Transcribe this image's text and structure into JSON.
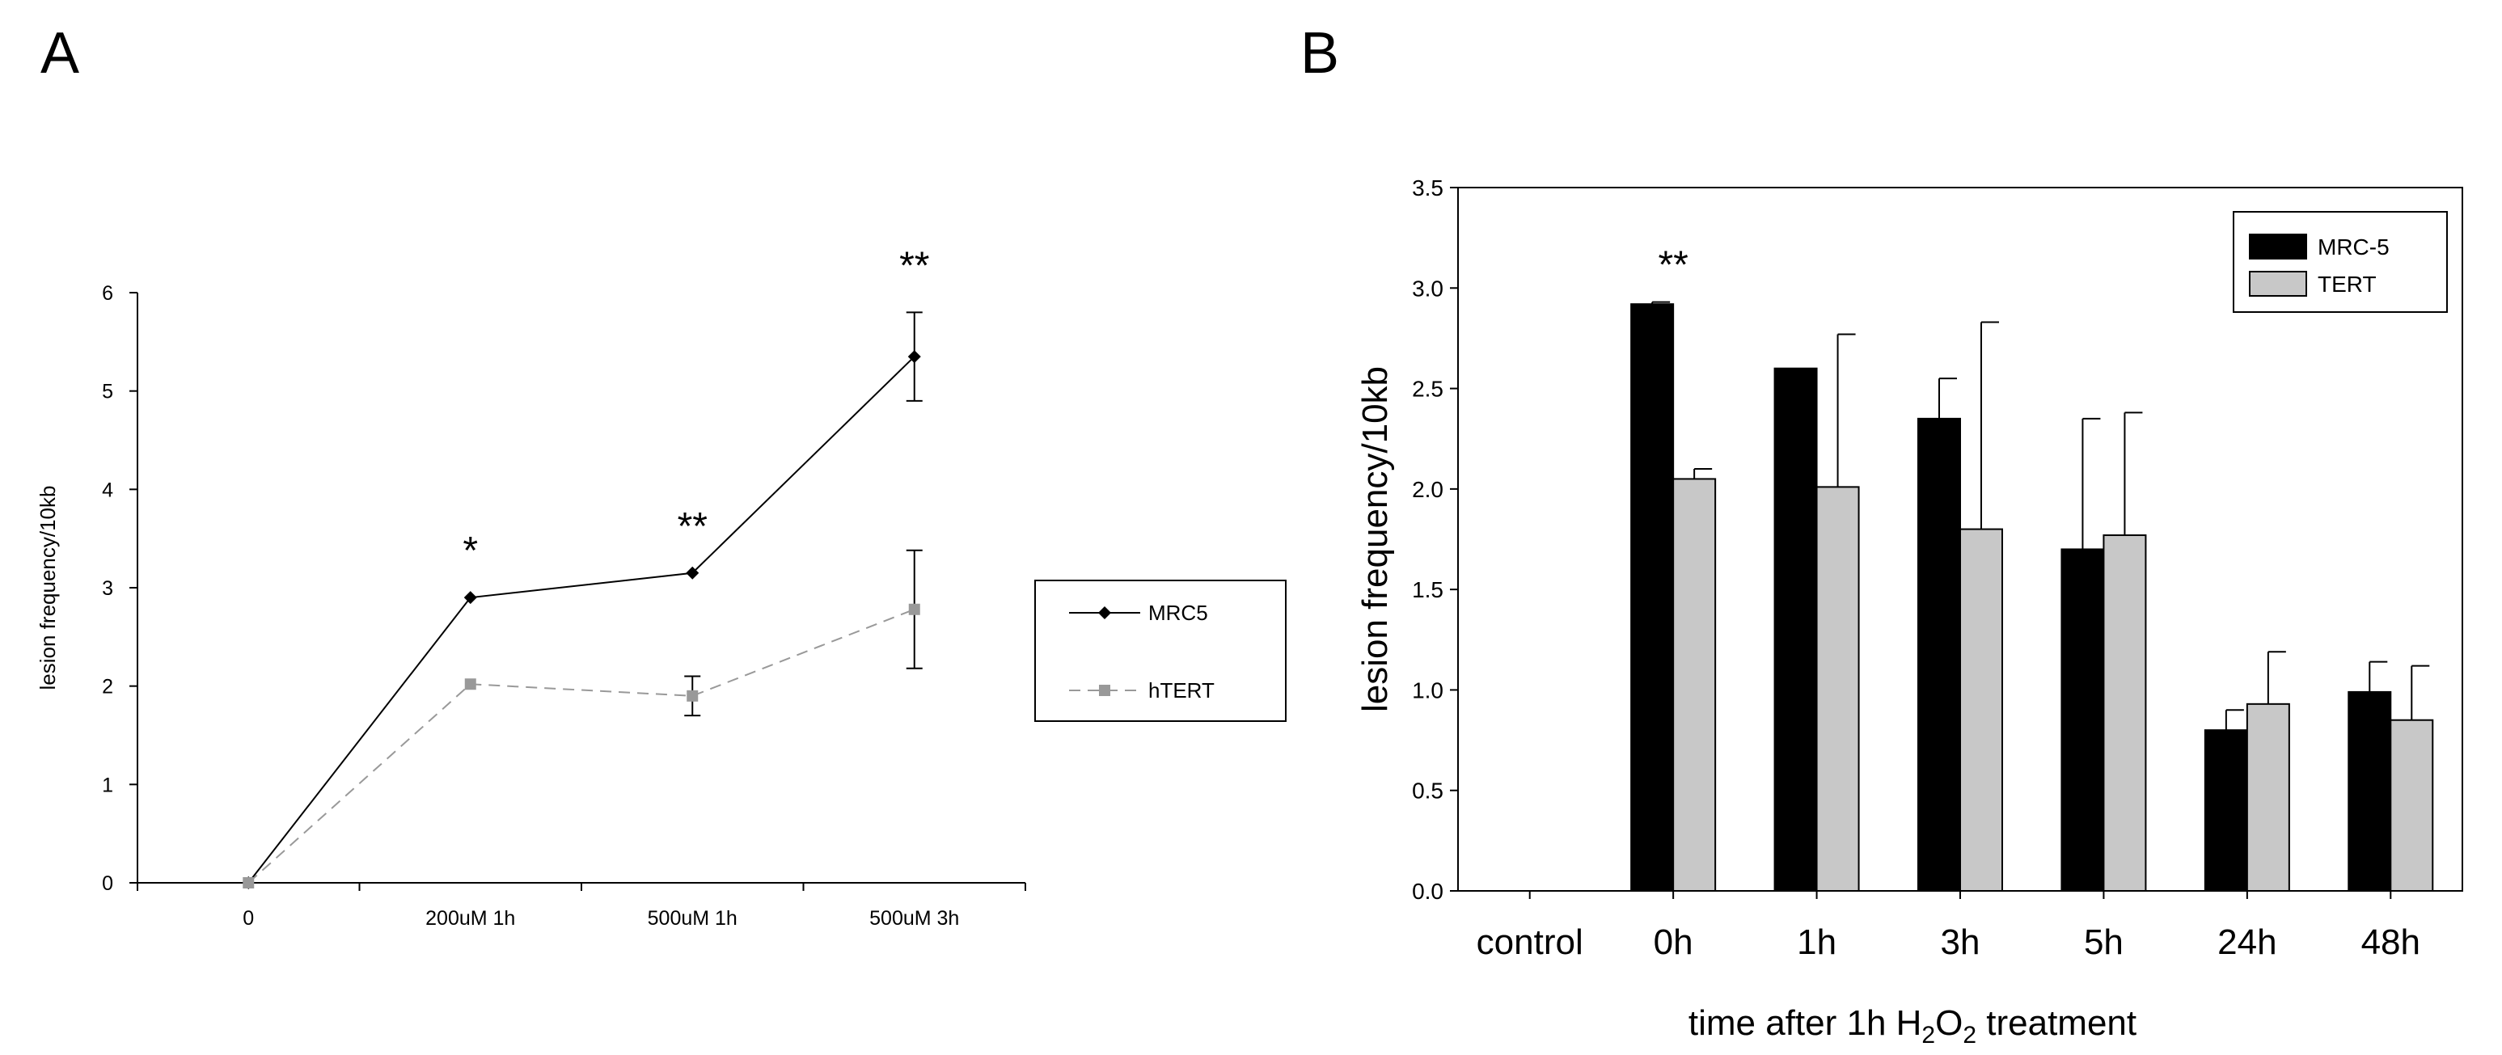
{
  "figure": {
    "labelA": "A",
    "labelB": "B"
  },
  "chart_data": [
    {
      "type": "line",
      "panel": "A",
      "categories": [
        "0",
        "200uM 1h",
        "500uM 1h",
        "500uM 3h"
      ],
      "ylabel": "lesion frequency/10kb",
      "xlabel": "",
      "ylim": [
        0,
        6
      ],
      "yticks": [
        "0",
        "1",
        "2",
        "3",
        "4",
        "5",
        "6"
      ],
      "series": [
        {
          "name": "MRC5",
          "values": [
            0,
            2.9,
            3.15,
            5.35
          ],
          "errors": [
            0,
            0,
            0,
            0.45
          ],
          "color": "#000000",
          "marker": "diamond",
          "dash": false
        },
        {
          "name": "hTERT",
          "values": [
            0,
            2.02,
            1.9,
            2.78
          ],
          "errors": [
            0,
            0,
            0.2,
            0.6
          ],
          "color": "#999999",
          "marker": "square",
          "dash": true
        }
      ],
      "annotations": [
        "",
        "*",
        "**",
        "**"
      ],
      "legend_position": "right"
    },
    {
      "type": "bar",
      "panel": "B",
      "categories": [
        "control",
        "0h",
        "1h",
        "3h",
        "5h",
        "24h",
        "48h"
      ],
      "ylabel": "lesion frequency/10kb",
      "xlabel_prefix": "time after 1h H",
      "xlabel_sub1": "2",
      "xlabel_mid": "O",
      "xlabel_sub2": "2",
      "xlabel_suffix": " treatment",
      "ylim": [
        0,
        3.5
      ],
      "yticks": [
        "0.0",
        "0.5",
        "1.0",
        "1.5",
        "2.0",
        "2.5",
        "3.0",
        "3.5"
      ],
      "series": [
        {
          "name": "MRC-5",
          "values": [
            0,
            2.92,
            2.6,
            2.35,
            1.7,
            0.8,
            0.99
          ],
          "errors": [
            0,
            0.01,
            0,
            0.2,
            0.65,
            0.1,
            0.15
          ],
          "color": "#000000"
        },
        {
          "name": "TERT",
          "values": [
            0,
            2.05,
            2.01,
            1.8,
            1.77,
            0.93,
            0.85
          ],
          "errors": [
            0,
            0.05,
            0.76,
            1.03,
            0.61,
            0.26,
            0.27
          ],
          "color": "#c8c8c8"
        }
      ],
      "annotations": [
        "",
        "**",
        "",
        "",
        "",
        "",
        ""
      ],
      "legend_position": "top-right"
    }
  ]
}
